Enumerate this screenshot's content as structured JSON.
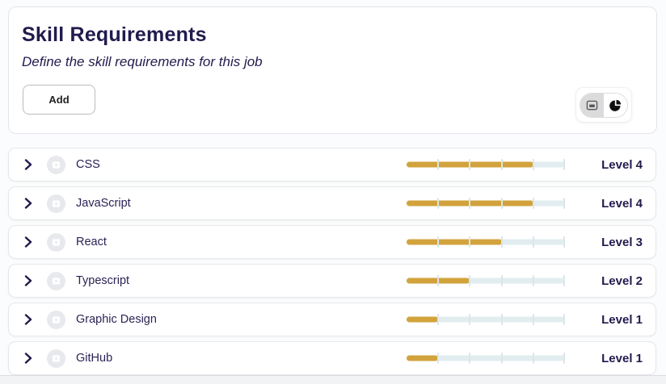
{
  "header": {
    "title": "Skill Requirements",
    "subtitle": "Define the skill requirements for this job",
    "add_button_label": "Add",
    "view_toggle": {
      "options": [
        {
          "id": "list-view",
          "icon": "list-view-icon",
          "selected": true
        },
        {
          "id": "chart-view",
          "icon": "pie-chart-icon",
          "selected": false
        }
      ]
    }
  },
  "skills": {
    "max_level": 5,
    "items": [
      {
        "name": "CSS",
        "level": 4,
        "level_label": "Level 4"
      },
      {
        "name": "JavaScript",
        "level": 4,
        "level_label": "Level 4"
      },
      {
        "name": "React",
        "level": 3,
        "level_label": "Level 3"
      },
      {
        "name": "Typescript",
        "level": 2,
        "level_label": "Level 2"
      },
      {
        "name": "Graphic Design",
        "level": 1,
        "level_label": "Level 1"
      },
      {
        "name": "GitHub",
        "level": 1,
        "level_label": "Level 1"
      }
    ]
  },
  "icons": {
    "row_expand": "chevron-right-icon",
    "row_avatar": "image-placeholder-icon",
    "toggle_left": "list-view-icon",
    "toggle_right": "pie-chart-icon"
  },
  "colors": {
    "accent_fill": "#d2a33c",
    "track": "#e2edf0",
    "text_navy": "#211b4d",
    "card_background": "#ffffff"
  }
}
